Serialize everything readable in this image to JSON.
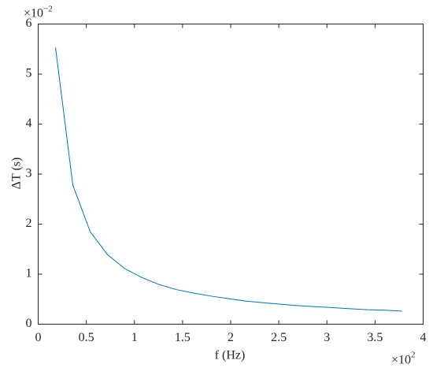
{
  "chart_data": {
    "type": "line",
    "x_label": "f (Hz)",
    "y_label": "ΔT (s)",
    "x_multiplier": {
      "base": "×10",
      "exponent": "2"
    },
    "y_multiplier": {
      "base": "×10",
      "exponent": "−2"
    },
    "x": [
      0.18,
      0.36,
      0.54,
      0.72,
      0.9,
      1.08,
      1.26,
      1.44,
      1.62,
      1.8,
      1.98,
      2.16,
      2.34,
      2.52,
      2.7,
      2.88,
      3.06,
      3.24,
      3.42,
      3.6,
      3.78
    ],
    "series": [
      {
        "color": "#0072bd",
        "values": [
          5.53,
          2.78,
          1.85,
          1.39,
          1.11,
          0.93,
          0.79,
          0.69,
          0.62,
          0.56,
          0.51,
          0.46,
          0.43,
          0.4,
          0.37,
          0.35,
          0.33,
          0.31,
          0.29,
          0.28,
          0.26
        ]
      }
    ],
    "xlim": [
      0,
      4
    ],
    "xticks": [
      0,
      0.5,
      1,
      1.5,
      2,
      2.5,
      3,
      3.5,
      4
    ],
    "ylim": [
      0,
      6
    ],
    "yticks": [
      0,
      1,
      2,
      3,
      4,
      5,
      6
    ]
  }
}
